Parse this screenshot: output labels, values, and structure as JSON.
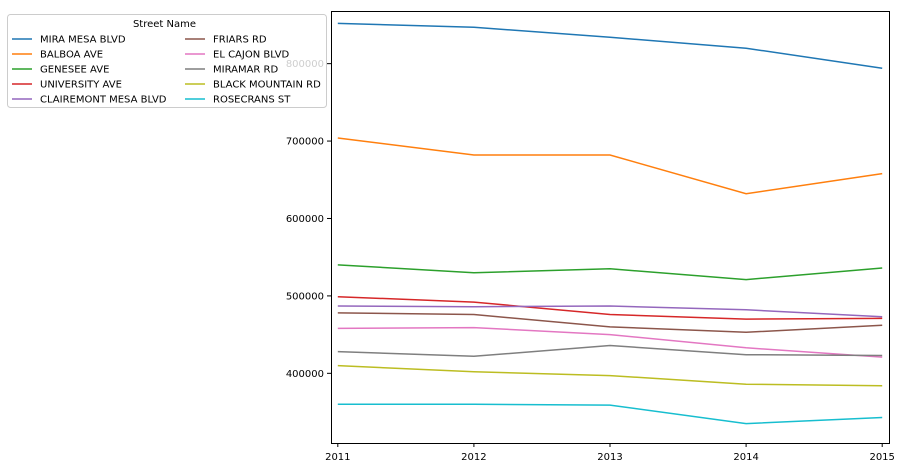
{
  "chart_data": {
    "type": "line",
    "x": [
      2011,
      2012,
      2013,
      2014,
      2015
    ],
    "xlim": [
      2010.95,
      2015.05
    ],
    "ylim": [
      310000,
      868000
    ],
    "yticks": [
      400000,
      500000,
      600000,
      700000,
      800000
    ],
    "ytick_labels": [
      "400000",
      "500000",
      "600000",
      "700000",
      "800000"
    ],
    "xtick_labels": [
      "2011",
      "2012",
      "2013",
      "2014",
      "2015"
    ],
    "grid": false,
    "legend": {
      "title": "Street Name",
      "placement": "upper-left-outside",
      "columns": 2
    },
    "series": [
      {
        "name": "MIRA MESA BLVD",
        "color": "#1f77b4",
        "values": [
          852000,
          847000,
          834000,
          820000,
          794000
        ]
      },
      {
        "name": "BALBOA AVE",
        "color": "#ff7f0e",
        "values": [
          704000,
          682000,
          682000,
          632000,
          658000
        ]
      },
      {
        "name": "GENESEE AVE",
        "color": "#2ca02c",
        "values": [
          540000,
          530000,
          535000,
          521000,
          536000
        ]
      },
      {
        "name": "UNIVERSITY AVE",
        "color": "#d62728",
        "values": [
          499000,
          492000,
          476000,
          470000,
          471000
        ]
      },
      {
        "name": "CLAIREMONT MESA BLVD",
        "color": "#9467bd",
        "values": [
          487000,
          486000,
          487000,
          482000,
          473000
        ]
      },
      {
        "name": "FRIARS RD",
        "color": "#8c564b",
        "values": [
          478000,
          476000,
          460000,
          453000,
          462000
        ]
      },
      {
        "name": "EL CAJON BLVD",
        "color": "#e377c2",
        "values": [
          458000,
          459000,
          450000,
          433000,
          421000
        ]
      },
      {
        "name": "MIRAMAR RD",
        "color": "#7f7f7f",
        "values": [
          428000,
          422000,
          436000,
          424000,
          423000
        ]
      },
      {
        "name": "BLACK MOUNTAIN RD",
        "color": "#bcbd22",
        "values": [
          410000,
          402000,
          397000,
          386000,
          384000
        ]
      },
      {
        "name": "ROSECRANS ST",
        "color": "#17becf",
        "values": [
          360000,
          360000,
          359000,
          335000,
          343000
        ]
      }
    ]
  }
}
